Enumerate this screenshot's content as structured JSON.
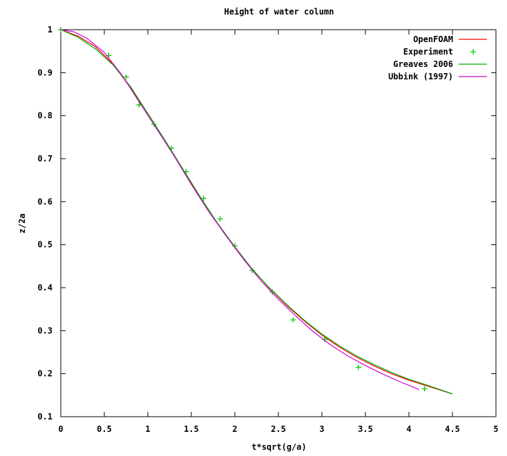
{
  "chart_data": {
    "type": "line",
    "title": "Height of water column",
    "xlabel": "t*sqrt(g/a)",
    "ylabel": "z/2a",
    "xlim": [
      0,
      5
    ],
    "ylim": [
      0.1,
      1
    ],
    "x_ticks": [
      "0",
      "0.5",
      "1",
      "1.5",
      "2",
      "2.5",
      "3",
      "3.5",
      "4",
      "4.5",
      "5"
    ],
    "y_ticks": [
      "0.1",
      "0.2",
      "0.3",
      "0.4",
      "0.5",
      "0.6",
      "0.7",
      "0.8",
      "0.9",
      "1"
    ],
    "grid": false,
    "legend_position": "top-right",
    "series": [
      {
        "name": "OpenFOAM",
        "style": "line",
        "color": "#ff0000",
        "x": [
          0,
          0.2,
          0.4,
          0.6,
          0.8,
          1.0,
          1.2,
          1.4,
          1.6,
          1.8,
          2.0,
          2.2,
          2.4,
          2.6,
          2.8,
          3.0,
          3.2,
          3.4,
          3.6,
          3.8,
          4.0,
          4.2,
          4.5
        ],
        "y": [
          1.0,
          0.985,
          0.96,
          0.92,
          0.865,
          0.805,
          0.74,
          0.675,
          0.61,
          0.55,
          0.495,
          0.443,
          0.398,
          0.358,
          0.322,
          0.29,
          0.262,
          0.238,
          0.218,
          0.2,
          0.185,
          0.172,
          0.153
        ]
      },
      {
        "name": "Experiment",
        "style": "points",
        "color": "#00cc00",
        "x": [
          0.0,
          0.55,
          0.75,
          0.9,
          1.07,
          1.27,
          1.44,
          1.64,
          1.83,
          2.0,
          2.2,
          2.43,
          2.67,
          3.03,
          3.42,
          4.18
        ],
        "y": [
          1.0,
          0.94,
          0.89,
          0.825,
          0.78,
          0.724,
          0.67,
          0.608,
          0.56,
          0.497,
          0.44,
          0.39,
          0.325,
          0.28,
          0.215,
          0.165
        ]
      },
      {
        "name": "Greaves 2006",
        "style": "line",
        "color": "#00aa00",
        "x": [
          0,
          0.2,
          0.4,
          0.6,
          0.8,
          1.0,
          1.2,
          1.4,
          1.6,
          1.8,
          2.0,
          2.2,
          2.4,
          2.6,
          2.8,
          3.0,
          3.2,
          3.4,
          3.6,
          3.8,
          4.0,
          4.2,
          4.5
        ],
        "y": [
          1.0,
          0.982,
          0.955,
          0.918,
          0.868,
          0.805,
          0.742,
          0.677,
          0.612,
          0.55,
          0.494,
          0.443,
          0.399,
          0.36,
          0.324,
          0.292,
          0.265,
          0.241,
          0.221,
          0.203,
          0.187,
          0.174,
          0.153
        ]
      },
      {
        "name": "Ubbink (1997)",
        "style": "line",
        "color": "#cc00cc",
        "x": [
          0,
          0.15,
          0.3,
          0.5,
          0.7,
          0.9,
          1.1,
          1.3,
          1.5,
          1.7,
          1.9,
          2.1,
          2.3,
          2.5,
          2.7,
          2.9,
          3.1,
          3.3,
          3.5,
          3.7,
          3.9,
          4.12
        ],
        "y": [
          1.0,
          0.995,
          0.98,
          0.947,
          0.895,
          0.832,
          0.77,
          0.707,
          0.64,
          0.577,
          0.52,
          0.466,
          0.416,
          0.373,
          0.334,
          0.298,
          0.267,
          0.241,
          0.219,
          0.199,
          0.181,
          0.163
        ]
      }
    ]
  }
}
